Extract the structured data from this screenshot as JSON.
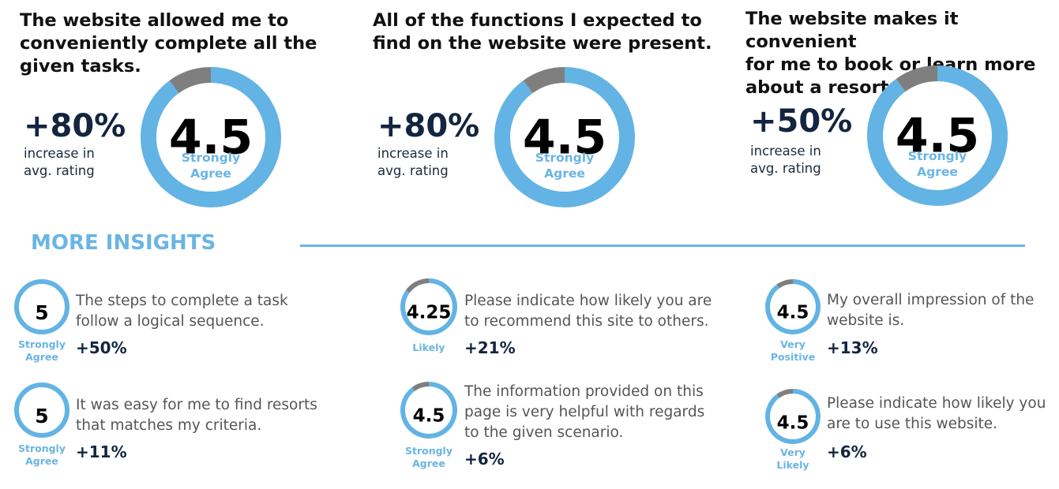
{
  "headline": [
    {
      "question": "The website allowed me to\nconveniently complete all the\ngiven tasks.",
      "increase": "+80%",
      "increase_note": "increase in\navg. rating"
    },
    {
      "question": "All of the functions I expected to\nfind on the website were present.",
      "increase": "+80%",
      "increase_note": "increase in\navg. rating"
    },
    {
      "question": "The website makes it convenient\nfor me to book or learn more\nabout a resort.",
      "increase": "+50%",
      "increase_note": "increase in\navg. rating"
    }
  ],
  "insights": {
    "title": "MORE INSIGHTS",
    "items": [
      {
        "question": "The steps to complete a task\nfollow a logical sequence.",
        "change": "+50%"
      },
      {
        "question": "Please indicate how likely you are\nto recommend this site to others.",
        "change": "+21%"
      },
      {
        "question": "My overall impression of the\nwebsite is.",
        "change": "+13%"
      },
      {
        "question": "It was easy for me to find resorts\nthat matches my criteria.",
        "change": "+11%"
      },
      {
        "question": "The information provided on this\npage is very helpful with regards\nto the given scenario.",
        "change": "+6%"
      },
      {
        "question": "Please indicate how likely you\nare to use this website.",
        "change": "+6%"
      }
    ]
  },
  "colors": {
    "filled": "#63b3e5",
    "remainder": "#7f7f7f",
    "accent_text": "#6ab5e4",
    "dark_text": "#13253f"
  },
  "chart_data": [
    {
      "type": "pie",
      "value_label": "4.5",
      "rating_label": "Strongly Agree",
      "fraction_filled": 0.9
    },
    {
      "type": "pie",
      "value_label": "4.5",
      "rating_label": "Strongly Agree",
      "fraction_filled": 0.9
    },
    {
      "type": "pie",
      "value_label": "4.5",
      "rating_label": "Strongly Agree",
      "fraction_filled": 0.9
    },
    {
      "type": "pie",
      "value_label": "5",
      "rating_label": "Strongly Agree",
      "fraction_filled": 1.0
    },
    {
      "type": "pie",
      "value_label": "4.25",
      "rating_label": "Likely",
      "fraction_filled": 0.85
    },
    {
      "type": "pie",
      "value_label": "4.5",
      "rating_label": "Very Positive",
      "fraction_filled": 0.9
    },
    {
      "type": "pie",
      "value_label": "5",
      "rating_label": "Strongly Agree",
      "fraction_filled": 1.0
    },
    {
      "type": "pie",
      "value_label": "4.5",
      "rating_label": "Strongly Agree",
      "fraction_filled": 0.9
    },
    {
      "type": "pie",
      "value_label": "4.5",
      "rating_label": "Very Likely",
      "fraction_filled": 0.9
    }
  ]
}
